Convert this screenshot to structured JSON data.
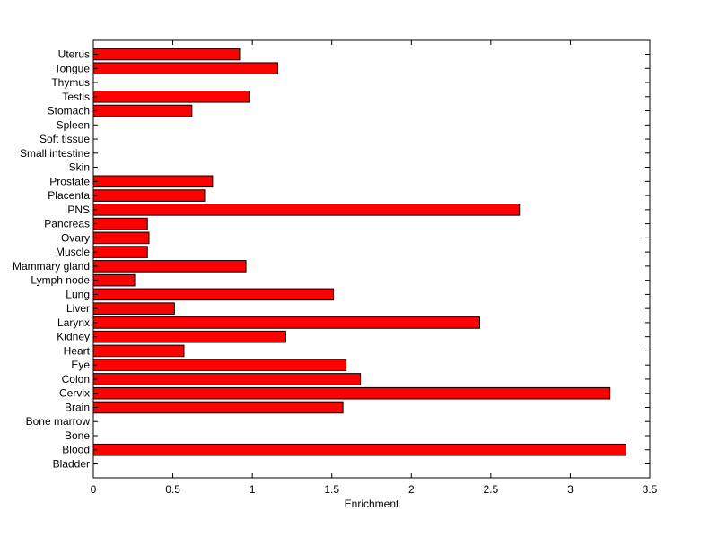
{
  "chart_data": {
    "type": "bar",
    "orientation": "horizontal",
    "title": "",
    "xlabel": "Enrichment",
    "ylabel": "",
    "xlim": [
      0,
      3.5
    ],
    "xticks": [
      "0",
      "0.5",
      "1",
      "1.5",
      "2",
      "2.5",
      "3",
      "3.5"
    ],
    "grid": false,
    "bar_color": "#ff0000",
    "bar_edge_color": "#000000",
    "categories": [
      "Bladder",
      "Blood",
      "Bone",
      "Bone marrow",
      "Brain",
      "Cervix",
      "Colon",
      "Eye",
      "Heart",
      "Kidney",
      "Larynx",
      "Liver",
      "Lung",
      "Lymph node",
      "Mammary gland",
      "Muscle",
      "Ovary",
      "Pancreas",
      "PNS",
      "Placenta",
      "Prostate",
      "Skin",
      "Small intestine",
      "Soft tissue",
      "Spleen",
      "Stomach",
      "Testis",
      "Thymus",
      "Tongue",
      "Uterus"
    ],
    "values": [
      0,
      3.35,
      0,
      0,
      1.57,
      3.25,
      1.68,
      1.59,
      0.57,
      1.21,
      2.43,
      0.51,
      1.51,
      0.26,
      0.96,
      0.34,
      0.35,
      0.34,
      2.68,
      0.7,
      0.75,
      0,
      0,
      0,
      0,
      0.62,
      0.98,
      0,
      1.16,
      0.92
    ]
  }
}
